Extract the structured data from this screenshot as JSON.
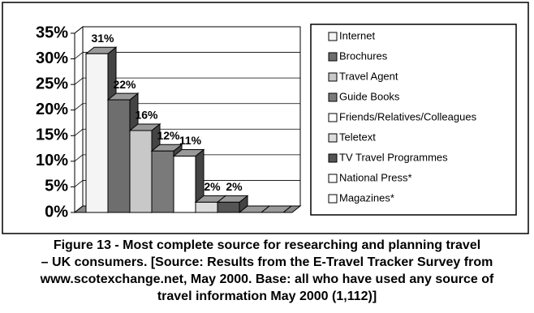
{
  "chart_data": {
    "type": "bar3d",
    "categories": [
      "Internet",
      "Brochures",
      "Travel Agent",
      "Guide Books",
      "Friends/Relatives/Colleagues",
      "Teletext",
      "TV Travel Programmes",
      "National Press*",
      "Magazines*"
    ],
    "values": [
      31,
      22,
      16,
      12,
      11,
      2,
      2,
      0,
      0
    ],
    "value_labels": [
      "31%",
      "22%",
      "16%",
      "12%",
      "11%",
      "2%",
      "2%",
      null,
      null
    ],
    "colors": [
      "#f4f4f4",
      "#6e6e6e",
      "#c8c8c8",
      "#7a7a7a",
      "#ffffff",
      "#dcdcdc",
      "#555555",
      "#ffffff",
      "#ffffff"
    ],
    "ylim": [
      0,
      35
    ],
    "yticks": [
      {
        "value": 0,
        "label": "0%"
      },
      {
        "value": 5,
        "label": "5%"
      },
      {
        "value": 10,
        "label": "10%"
      },
      {
        "value": 15,
        "label": "15%"
      },
      {
        "value": 20,
        "label": "20%"
      },
      {
        "value": 25,
        "label": "25%"
      },
      {
        "value": 30,
        "label": "30%"
      },
      {
        "value": 35,
        "label": "35%"
      }
    ],
    "grid": true,
    "legend": "right",
    "caption": [
      "Figure 13 - Most complete source for researching and planning travel",
      "– UK consumers. [Source: Results from the E-Travel Tracker Survey from",
      "www.scotexchange.net, May 2000. Base: all who have used any source of",
      "travel information May 2000 (1,112)]"
    ]
  }
}
